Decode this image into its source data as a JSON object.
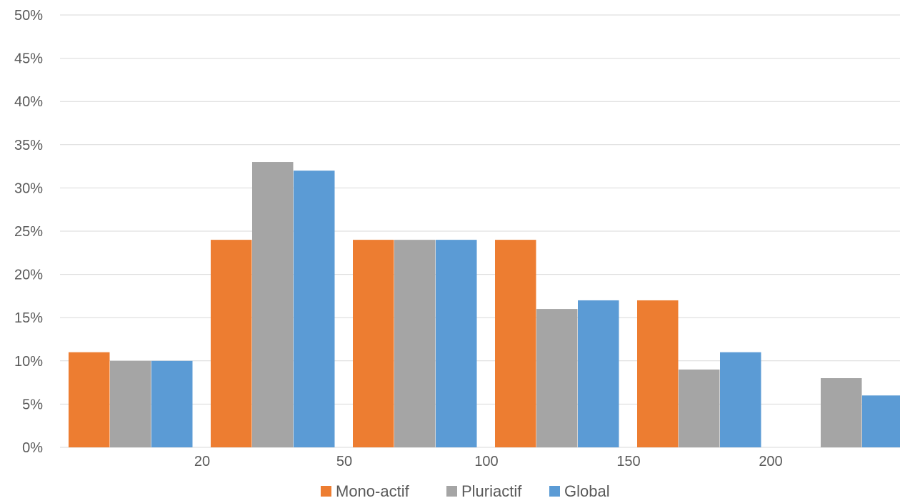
{
  "chart_data": {
    "type": "bar",
    "title": "",
    "xlabel": "",
    "ylabel": "",
    "ylim": [
      0,
      0.5
    ],
    "y_ticks": [
      "0%",
      "5%",
      "10%",
      "15%",
      "20%",
      "25%",
      "30%",
      "35%",
      "40%",
      "45%",
      "50%"
    ],
    "grid": true,
    "legend_position": "bottom",
    "x_tick_labels": [
      "20",
      "50",
      "100",
      "150",
      "200"
    ],
    "categories": [
      "20",
      "50",
      "100",
      "150",
      "200",
      ""
    ],
    "series": [
      {
        "name": "Mono-actif",
        "color": "#ED7D31",
        "values": [
          0.11,
          0.24,
          0.24,
          0.24,
          0.17,
          0
        ]
      },
      {
        "name": "Pluriactif",
        "color": "#A5A5A5",
        "values": [
          0.1,
          0.33,
          0.24,
          0.16,
          0.09,
          0.08
        ]
      },
      {
        "name": "Global",
        "color": "#5B9BD5",
        "values": [
          0.1,
          0.32,
          0.24,
          0.17,
          0.11,
          0.06
        ]
      }
    ]
  }
}
